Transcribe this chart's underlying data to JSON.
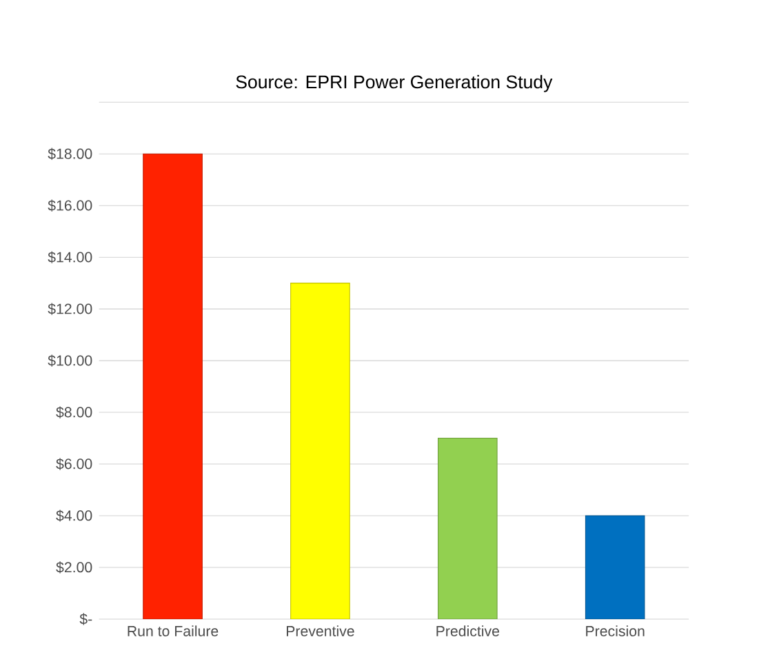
{
  "chart_data": {
    "type": "bar",
    "title": "Source: EPRI Power Generation Study",
    "categories": [
      "Run to Failure",
      "Preventive",
      "Predictive",
      "Precision"
    ],
    "values": [
      18,
      13,
      7,
      4
    ],
    "colors": [
      "#ff2200",
      "#ffff00",
      "#92d050",
      "#0070c0"
    ],
    "ylim": [
      0,
      20
    ],
    "yticks": [
      {
        "value": 0,
        "label": "$-"
      },
      {
        "value": 2,
        "label": "$2.00"
      },
      {
        "value": 4,
        "label": "$4.00"
      },
      {
        "value": 6,
        "label": "$6.00"
      },
      {
        "value": 8,
        "label": "$8.00"
      },
      {
        "value": 10,
        "label": "$10.00"
      },
      {
        "value": 12,
        "label": "$12.00"
      },
      {
        "value": 14,
        "label": "$14.00"
      },
      {
        "value": 16,
        "label": "$16.00"
      },
      {
        "value": 18,
        "label": "$18.00"
      },
      {
        "value": 20,
        "label": null
      }
    ],
    "grid": "y"
  }
}
